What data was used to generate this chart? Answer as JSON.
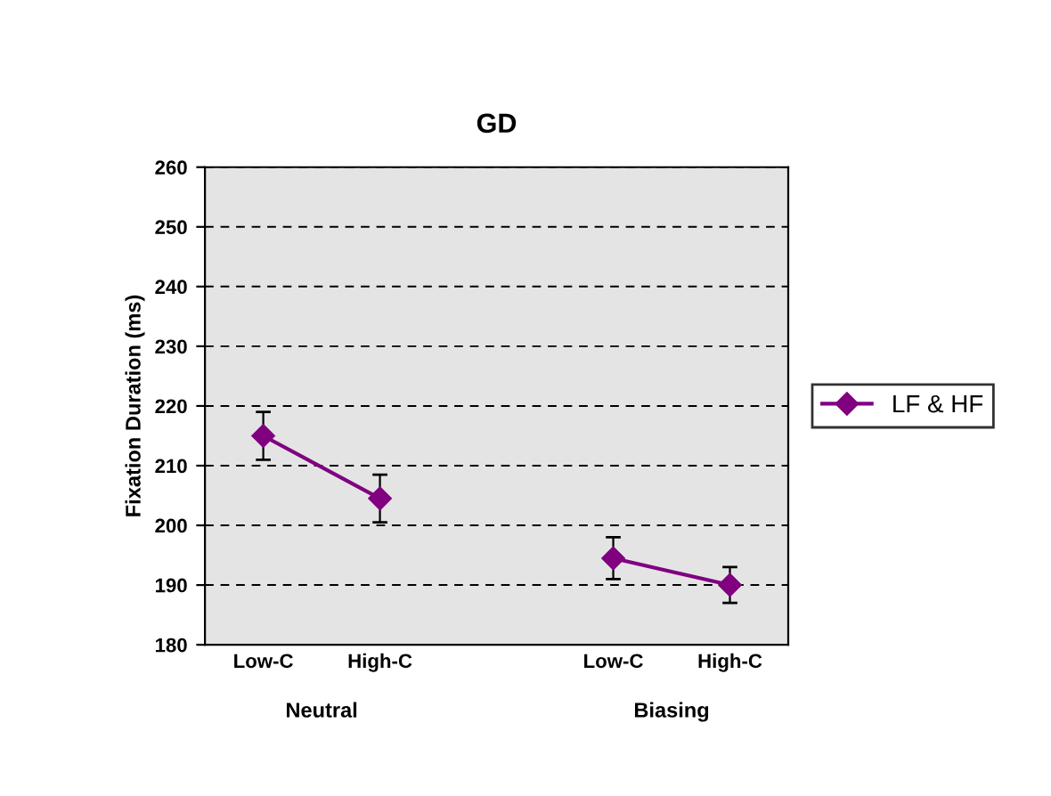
{
  "chart_data": {
    "type": "line",
    "title": "GD",
    "ylabel": "Fixation Duration (ms)",
    "categories": [
      "Low-C",
      "High-C",
      null,
      "Low-C",
      "High-C"
    ],
    "series": [
      {
        "name": "LF & HF",
        "color": "#800080",
        "values": [
          215,
          204.5,
          null,
          194.5,
          190
        ],
        "errors": [
          4,
          4,
          null,
          3.5,
          3
        ]
      }
    ],
    "annotations": [
      "Neutral",
      "Biasing"
    ],
    "ylim": [
      180,
      260
    ],
    "yticks": [
      180,
      190,
      200,
      210,
      220,
      230,
      240,
      250,
      260
    ],
    "grid": "y",
    "legend": "right",
    "marker": "diamond",
    "line_style": "solid"
  }
}
